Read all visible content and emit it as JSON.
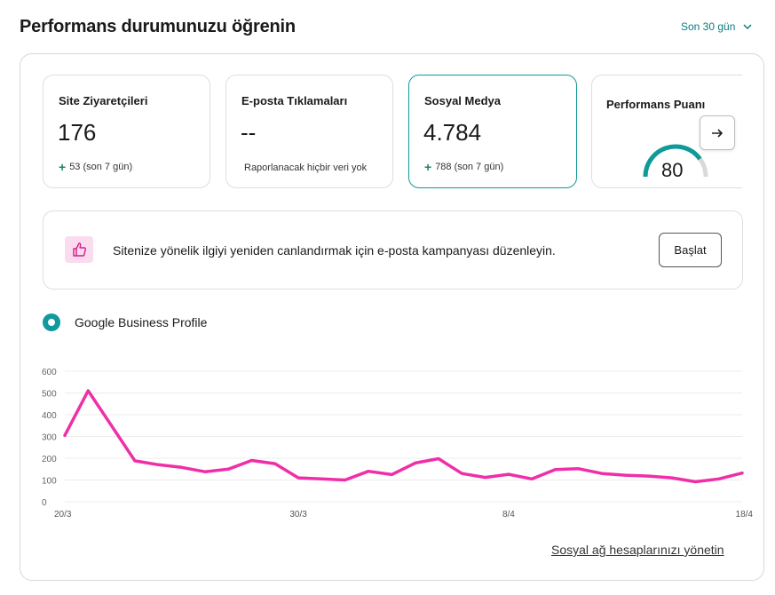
{
  "header": {
    "title": "Performans durumunuzu öğrenin",
    "range_label": "Son 30 gün"
  },
  "metrics": [
    {
      "title": "Site Ziyaretçileri",
      "value": "176",
      "delta": "53 (son 7 gün)"
    },
    {
      "title": "E-posta Tıklamaları",
      "value": "--",
      "note": "Raporlanacak hiçbir veri yok"
    },
    {
      "title": "Sosyal Medya",
      "value": "4.784",
      "delta": "788 (son 7 gün)"
    }
  ],
  "score": {
    "title": "Performans Puanı",
    "value": "80",
    "level": 0.8
  },
  "promo": {
    "text": "Sitenize yönelik ilgiyi yeniden canlandırmak için e-posta kampanyası düzenleyin.",
    "button_label": "Başlat"
  },
  "legend": {
    "label": "Google Business Profile"
  },
  "colors": {
    "accent": "#0f9a9a",
    "series": "#ee2fa8",
    "gauge_track": "#d9d9d9"
  },
  "chart_data": {
    "type": "line",
    "x": [
      "20/3",
      "21/3",
      "22/3",
      "23/3",
      "24/3",
      "25/3",
      "26/3",
      "27/3",
      "28/3",
      "29/3",
      "30/3",
      "31/3",
      "1/4",
      "2/4",
      "3/4",
      "4/4",
      "5/4",
      "6/4",
      "7/4",
      "8/4",
      "9/4",
      "10/4",
      "11/4",
      "12/4",
      "13/4",
      "14/4",
      "15/4",
      "16/4",
      "17/4",
      "18/4"
    ],
    "x_tick_labels": [
      "20/3",
      "30/3",
      "8/4",
      "18/4"
    ],
    "series": [
      {
        "values": [
          305,
          510,
          350,
          188,
          170,
          158,
          138,
          150,
          190,
          175,
          110,
          105,
          100,
          140,
          125,
          178,
          198,
          130,
          112,
          126,
          105,
          148,
          152,
          130,
          122,
          118,
          110,
          92,
          105,
          132
        ]
      }
    ],
    "ylim": [
      0,
      600
    ],
    "y_ticks": [
      0,
      100,
      200,
      300,
      400,
      500,
      600
    ],
    "grid": true
  },
  "footer": {
    "link_label": "Sosyal ağ hesaplarınızı yönetin"
  }
}
